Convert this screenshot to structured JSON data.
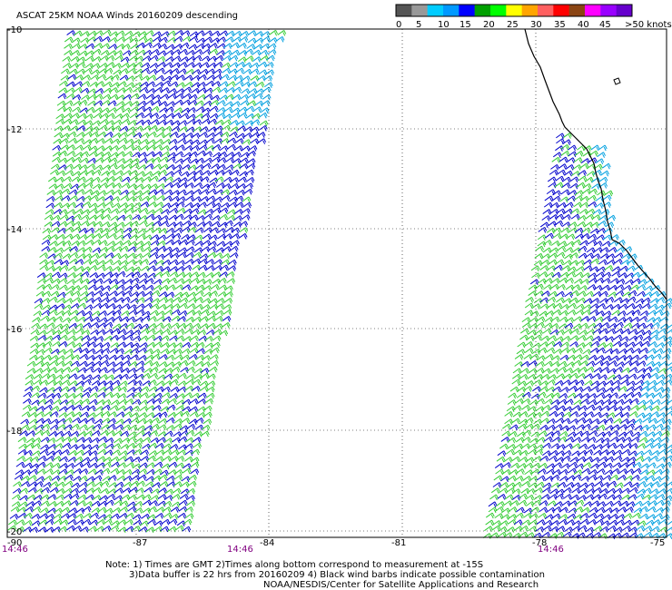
{
  "title": "ASCAT 25KM NOAA Winds 20160209 descending",
  "legend": {
    "colors": [
      "#555555",
      "#999999",
      "#00ccff",
      "#0099ff",
      "#0000ff",
      "#00a000",
      "#00ff00",
      "#ffff00",
      "#ffa500",
      "#ff6060",
      "#ff0000",
      "#8b4513",
      "#ff00ff",
      "#9900ff",
      "#6600cc"
    ],
    "labels": [
      "0",
      "5",
      "10",
      "15",
      "20",
      "25",
      "30",
      "35",
      "40",
      "45",
      ">50 knots"
    ]
  },
  "axes": {
    "lat_labels": [
      "-10",
      "-12",
      "-14",
      "-16",
      "-18",
      "-20"
    ],
    "lon_labels": [
      "-90",
      "-87",
      "-84",
      "-81",
      "-78",
      "-75"
    ]
  },
  "pass_times": [
    "14:46",
    "14:46",
    "14:46"
  ],
  "footer": {
    "line1": "Note: 1) Times are GMT 2)Times along bottom correspond to measurement at -15S",
    "line2": "3)Data buffer is 22 hrs from 20160209 4) Black wind barbs indicate possible contamination",
    "line3": "NOAA/NESDIS/Center for Satellite Applications and Research"
  },
  "barb_colors": {
    "green": "#33cc33",
    "blue": "#0000cc",
    "cyan": "#00a0e0"
  }
}
